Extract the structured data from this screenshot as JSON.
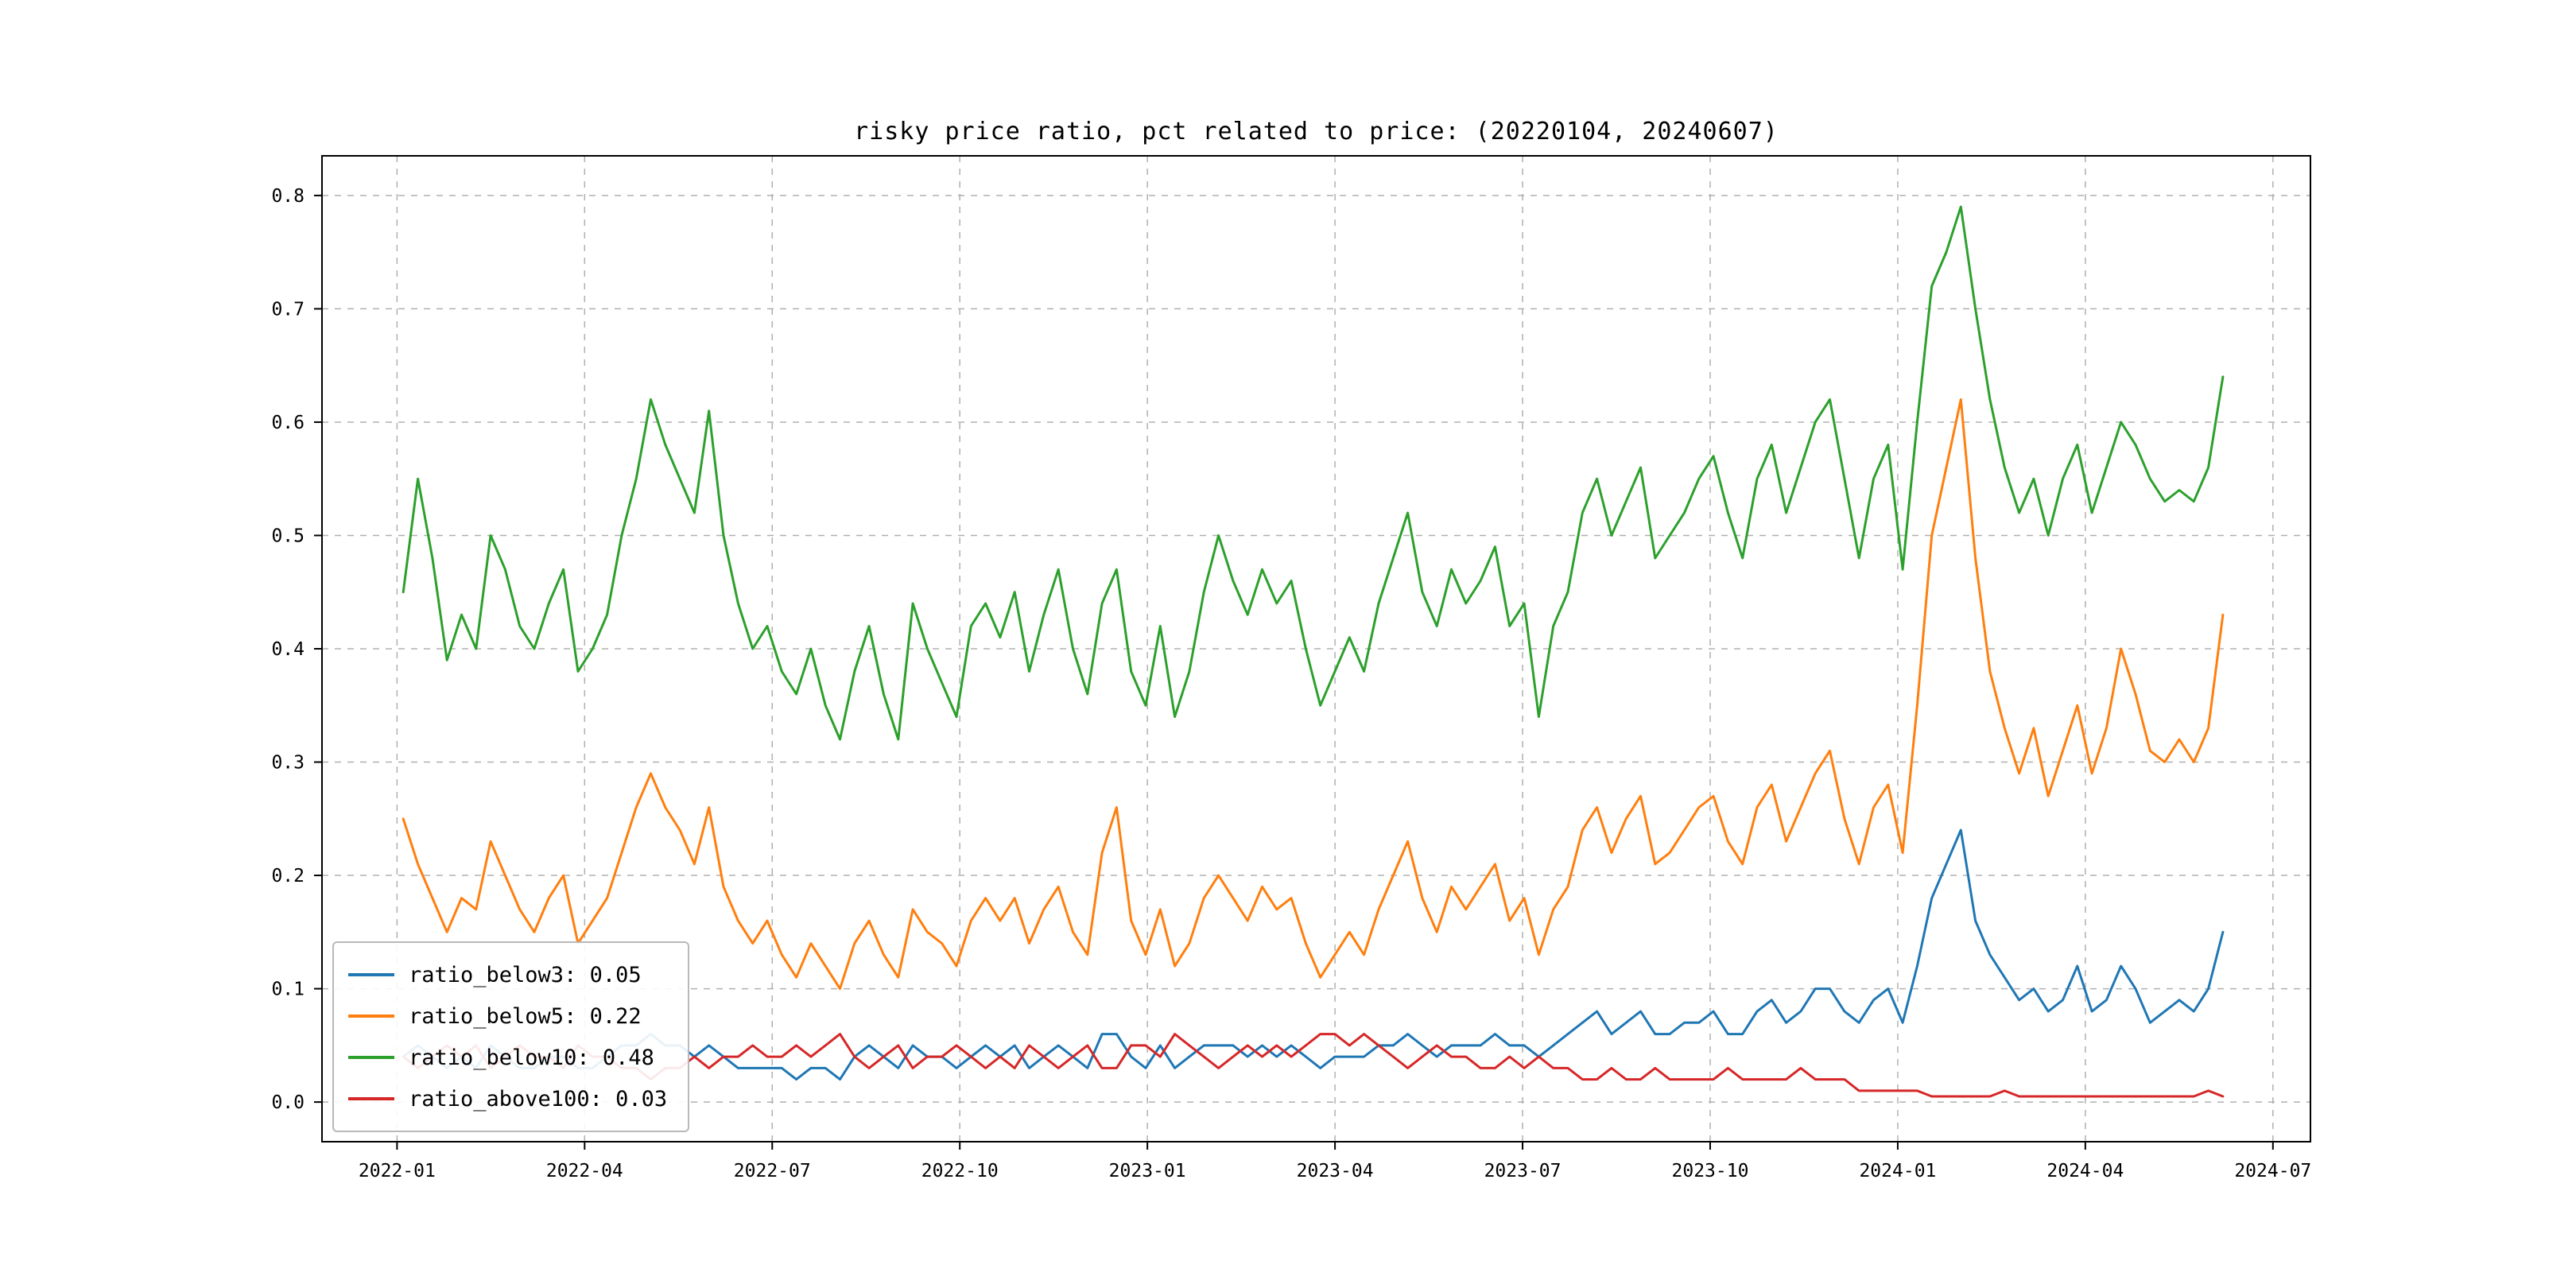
{
  "figure": {
    "background_color": "#ffffff",
    "grid_color": "#b0b0b0",
    "frame_color": "#000000"
  },
  "chart_data": {
    "type": "line",
    "title": "risky price ratio, pct related to price: (20220104, 20240607)",
    "xlabel": "",
    "ylabel": "",
    "grid": true,
    "grid_style": "dashed",
    "legend_position": "lower left",
    "x_start_date": "2022-01-04",
    "x_end_date": "2024-06-07",
    "x_sampling": "weekly estimates read from plot",
    "x_data_start_month": 0.1,
    "x_data_end_month": 29.2,
    "x_ticks": [
      "2022-01",
      "2022-04",
      "2022-07",
      "2022-10",
      "2023-01",
      "2023-04",
      "2023-07",
      "2023-10",
      "2024-01",
      "2024-04",
      "2024-07"
    ],
    "y_ticks": [
      0.0,
      0.1,
      0.2,
      0.3,
      0.4,
      0.5,
      0.6,
      0.7,
      0.8
    ],
    "ylim": [
      -0.035,
      0.835
    ],
    "series": [
      {
        "name": "ratio_below3",
        "legend_label": "ratio_below3: 0.05",
        "color": "#1f77b4",
        "values": [
          0.04,
          0.05,
          0.04,
          0.03,
          0.04,
          0.03,
          0.05,
          0.04,
          0.03,
          0.03,
          0.04,
          0.04,
          0.03,
          0.03,
          0.04,
          0.05,
          0.05,
          0.06,
          0.05,
          0.05,
          0.04,
          0.05,
          0.04,
          0.03,
          0.03,
          0.03,
          0.03,
          0.02,
          0.03,
          0.03,
          0.02,
          0.04,
          0.05,
          0.04,
          0.03,
          0.05,
          0.04,
          0.04,
          0.03,
          0.04,
          0.05,
          0.04,
          0.05,
          0.03,
          0.04,
          0.05,
          0.04,
          0.03,
          0.06,
          0.06,
          0.04,
          0.03,
          0.05,
          0.03,
          0.04,
          0.05,
          0.05,
          0.05,
          0.04,
          0.05,
          0.04,
          0.05,
          0.04,
          0.03,
          0.04,
          0.04,
          0.04,
          0.05,
          0.05,
          0.06,
          0.05,
          0.04,
          0.05,
          0.05,
          0.05,
          0.06,
          0.05,
          0.05,
          0.04,
          0.05,
          0.06,
          0.07,
          0.08,
          0.06,
          0.07,
          0.08,
          0.06,
          0.06,
          0.07,
          0.07,
          0.08,
          0.06,
          0.06,
          0.08,
          0.09,
          0.07,
          0.08,
          0.1,
          0.1,
          0.08,
          0.07,
          0.09,
          0.1,
          0.07,
          0.12,
          0.18,
          0.21,
          0.24,
          0.16,
          0.13,
          0.11,
          0.09,
          0.1,
          0.08,
          0.09,
          0.12,
          0.08,
          0.09,
          0.12,
          0.1,
          0.07,
          0.08,
          0.09,
          0.08,
          0.1,
          0.15
        ]
      },
      {
        "name": "ratio_below5",
        "legend_label": "ratio_below5: 0.22",
        "color": "#ff7f0e",
        "values": [
          0.25,
          0.21,
          0.18,
          0.15,
          0.18,
          0.17,
          0.23,
          0.2,
          0.17,
          0.15,
          0.18,
          0.2,
          0.14,
          0.16,
          0.18,
          0.22,
          0.26,
          0.29,
          0.26,
          0.24,
          0.21,
          0.26,
          0.19,
          0.16,
          0.14,
          0.16,
          0.13,
          0.11,
          0.14,
          0.12,
          0.1,
          0.14,
          0.16,
          0.13,
          0.11,
          0.17,
          0.15,
          0.14,
          0.12,
          0.16,
          0.18,
          0.16,
          0.18,
          0.14,
          0.17,
          0.19,
          0.15,
          0.13,
          0.22,
          0.26,
          0.16,
          0.13,
          0.17,
          0.12,
          0.14,
          0.18,
          0.2,
          0.18,
          0.16,
          0.19,
          0.17,
          0.18,
          0.14,
          0.11,
          0.13,
          0.15,
          0.13,
          0.17,
          0.2,
          0.23,
          0.18,
          0.15,
          0.19,
          0.17,
          0.19,
          0.21,
          0.16,
          0.18,
          0.13,
          0.17,
          0.19,
          0.24,
          0.26,
          0.22,
          0.25,
          0.27,
          0.21,
          0.22,
          0.24,
          0.26,
          0.27,
          0.23,
          0.21,
          0.26,
          0.28,
          0.23,
          0.26,
          0.29,
          0.31,
          0.25,
          0.21,
          0.26,
          0.28,
          0.22,
          0.35,
          0.5,
          0.56,
          0.62,
          0.48,
          0.38,
          0.33,
          0.29,
          0.33,
          0.27,
          0.31,
          0.35,
          0.29,
          0.33,
          0.4,
          0.36,
          0.31,
          0.3,
          0.32,
          0.3,
          0.33,
          0.43
        ]
      },
      {
        "name": "ratio_below10",
        "legend_label": "ratio_below10: 0.48",
        "color": "#2ca02c",
        "values": [
          0.45,
          0.55,
          0.48,
          0.39,
          0.43,
          0.4,
          0.5,
          0.47,
          0.42,
          0.4,
          0.44,
          0.47,
          0.38,
          0.4,
          0.43,
          0.5,
          0.55,
          0.62,
          0.58,
          0.55,
          0.52,
          0.61,
          0.5,
          0.44,
          0.4,
          0.42,
          0.38,
          0.36,
          0.4,
          0.35,
          0.32,
          0.38,
          0.42,
          0.36,
          0.32,
          0.44,
          0.4,
          0.37,
          0.34,
          0.42,
          0.44,
          0.41,
          0.45,
          0.38,
          0.43,
          0.47,
          0.4,
          0.36,
          0.44,
          0.47,
          0.38,
          0.35,
          0.42,
          0.34,
          0.38,
          0.45,
          0.5,
          0.46,
          0.43,
          0.47,
          0.44,
          0.46,
          0.4,
          0.35,
          0.38,
          0.41,
          0.38,
          0.44,
          0.48,
          0.52,
          0.45,
          0.42,
          0.47,
          0.44,
          0.46,
          0.49,
          0.42,
          0.44,
          0.34,
          0.42,
          0.45,
          0.52,
          0.55,
          0.5,
          0.53,
          0.56,
          0.48,
          0.5,
          0.52,
          0.55,
          0.57,
          0.52,
          0.48,
          0.55,
          0.58,
          0.52,
          0.56,
          0.6,
          0.62,
          0.55,
          0.48,
          0.55,
          0.58,
          0.47,
          0.6,
          0.72,
          0.75,
          0.79,
          0.7,
          0.62,
          0.56,
          0.52,
          0.55,
          0.5,
          0.55,
          0.58,
          0.52,
          0.56,
          0.6,
          0.58,
          0.55,
          0.53,
          0.54,
          0.53,
          0.56,
          0.64
        ]
      },
      {
        "name": "ratio_above100",
        "legend_label": "ratio_above100: 0.03",
        "color": "#d62728",
        "values": [
          0.04,
          0.03,
          0.04,
          0.05,
          0.04,
          0.05,
          0.03,
          0.04,
          0.05,
          0.04,
          0.04,
          0.03,
          0.05,
          0.04,
          0.04,
          0.03,
          0.03,
          0.02,
          0.03,
          0.03,
          0.04,
          0.03,
          0.04,
          0.04,
          0.05,
          0.04,
          0.04,
          0.05,
          0.04,
          0.05,
          0.06,
          0.04,
          0.03,
          0.04,
          0.05,
          0.03,
          0.04,
          0.04,
          0.05,
          0.04,
          0.03,
          0.04,
          0.03,
          0.05,
          0.04,
          0.03,
          0.04,
          0.05,
          0.03,
          0.03,
          0.05,
          0.05,
          0.04,
          0.06,
          0.05,
          0.04,
          0.03,
          0.04,
          0.05,
          0.04,
          0.05,
          0.04,
          0.05,
          0.06,
          0.06,
          0.05,
          0.06,
          0.05,
          0.04,
          0.03,
          0.04,
          0.05,
          0.04,
          0.04,
          0.03,
          0.03,
          0.04,
          0.03,
          0.04,
          0.03,
          0.03,
          0.02,
          0.02,
          0.03,
          0.02,
          0.02,
          0.03,
          0.02,
          0.02,
          0.02,
          0.02,
          0.03,
          0.02,
          0.02,
          0.02,
          0.02,
          0.03,
          0.02,
          0.02,
          0.02,
          0.01,
          0.01,
          0.01,
          0.01,
          0.01,
          0.005,
          0.005,
          0.005,
          0.005,
          0.005,
          0.01,
          0.005,
          0.005,
          0.005,
          0.005,
          0.005,
          0.005,
          0.005,
          0.005,
          0.005,
          0.005,
          0.005,
          0.005,
          0.005,
          0.01,
          0.005
        ]
      }
    ]
  }
}
